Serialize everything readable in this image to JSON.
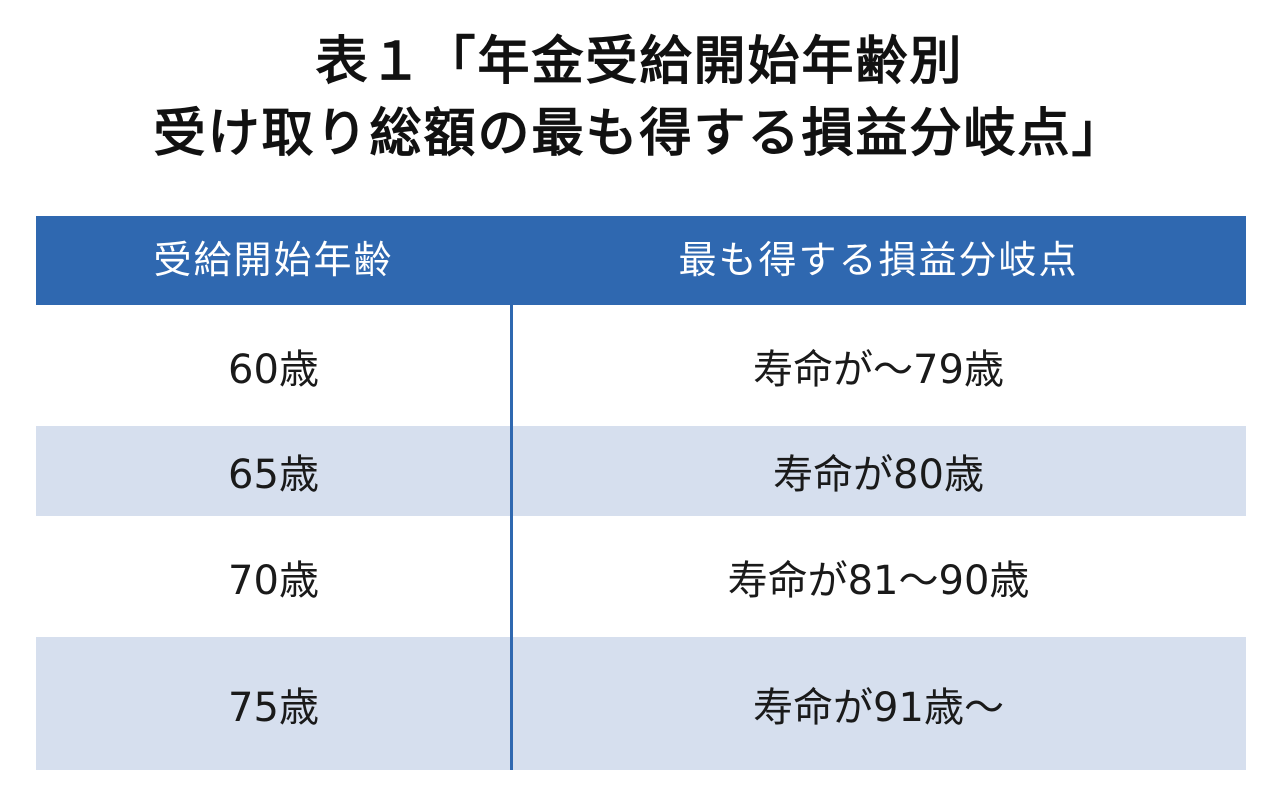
{
  "title": {
    "line1": "表１「年金受給開始年齢別",
    "line2": "受け取り総額の最も得する損益分岐点」"
  },
  "table": {
    "headers": [
      "受給開始年齢",
      "最も得する損益分岐点"
    ],
    "rows": [
      [
        "60歳",
        "寿命が～79歳"
      ],
      [
        "65歳",
        "寿命が80歳"
      ],
      [
        "70歳",
        "寿命が81～90歳"
      ],
      [
        "75歳",
        "寿命が91歳～"
      ]
    ]
  },
  "colors": {
    "header_bg": "#2f68b0",
    "stripe_bg": "#d6dfee",
    "divider": "#2f68b0"
  }
}
